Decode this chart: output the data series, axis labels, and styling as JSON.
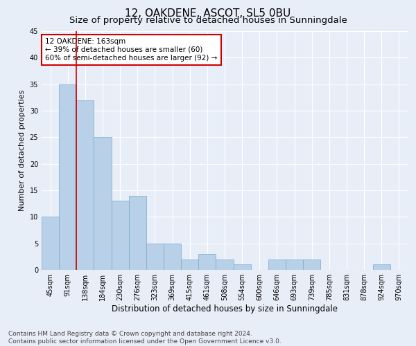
{
  "title": "12, OAKDENE, ASCOT, SL5 0BU",
  "subtitle": "Size of property relative to detached houses in Sunningdale",
  "xlabel": "Distribution of detached houses by size in Sunningdale",
  "ylabel": "Number of detached properties",
  "categories": [
    "45sqm",
    "91sqm",
    "138sqm",
    "184sqm",
    "230sqm",
    "276sqm",
    "323sqm",
    "369sqm",
    "415sqm",
    "461sqm",
    "508sqm",
    "554sqm",
    "600sqm",
    "646sqm",
    "693sqm",
    "739sqm",
    "785sqm",
    "831sqm",
    "878sqm",
    "924sqm",
    "970sqm"
  ],
  "values": [
    10,
    35,
    32,
    25,
    13,
    14,
    5,
    5,
    2,
    3,
    2,
    1,
    0,
    2,
    2,
    2,
    0,
    0,
    0,
    1,
    0
  ],
  "bar_color": "#b8d0e8",
  "bar_edge_color": "#7aaac8",
  "vline_color": "#cc0000",
  "annotation_text": "12 OAKDENE: 163sqm\n← 39% of detached houses are smaller (60)\n60% of semi-detached houses are larger (92) →",
  "annotation_box_color": "#ffffff",
  "annotation_box_edge_color": "#cc0000",
  "ylim": [
    0,
    45
  ],
  "yticks": [
    0,
    5,
    10,
    15,
    20,
    25,
    30,
    35,
    40,
    45
  ],
  "background_color": "#e8eef8",
  "footer_text": "Contains HM Land Registry data © Crown copyright and database right 2024.\nContains public sector information licensed under the Open Government Licence v3.0.",
  "title_fontsize": 11,
  "subtitle_fontsize": 9.5,
  "ylabel_fontsize": 8,
  "xlabel_fontsize": 8.5,
  "footer_fontsize": 6.5,
  "tick_fontsize": 7,
  "annotation_fontsize": 7.5
}
